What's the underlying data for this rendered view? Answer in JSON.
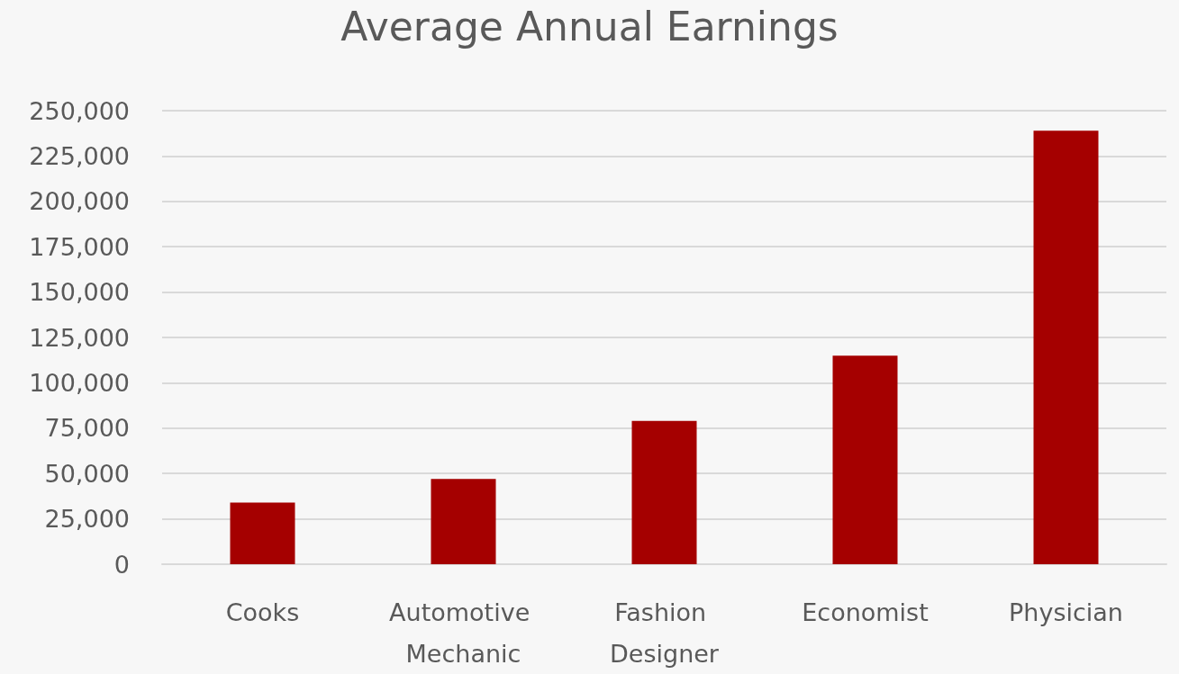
{
  "chart_data": {
    "type": "bar",
    "title": "Average Annual Earnings",
    "categories": [
      "Cooks",
      "Automotive Mechanic",
      "Fashion Designer",
      "Economist",
      "Physician"
    ],
    "values": [
      34000,
      47000,
      79000,
      115000,
      239000
    ],
    "color": "#a50000",
    "ylim": [
      0,
      250000
    ],
    "yticks": [
      0,
      {
        "value": 25000,
        "label": "25,000"
      },
      {
        "value": 50000,
        "label": "50,000"
      },
      {
        "value": 75000,
        "label": "75,000"
      },
      {
        "value": 100000,
        "label": "100,000"
      },
      {
        "value": 125000,
        "label": "125,000"
      },
      {
        "value": 150000,
        "label": "150,000"
      },
      {
        "value": 175000,
        "label": "175,000"
      },
      {
        "value": 200000,
        "label": "200,000"
      },
      {
        "value": 225000,
        "label": "225,000"
      },
      {
        "value": 250000,
        "label": "250,000"
      }
    ],
    "grid": "y"
  }
}
